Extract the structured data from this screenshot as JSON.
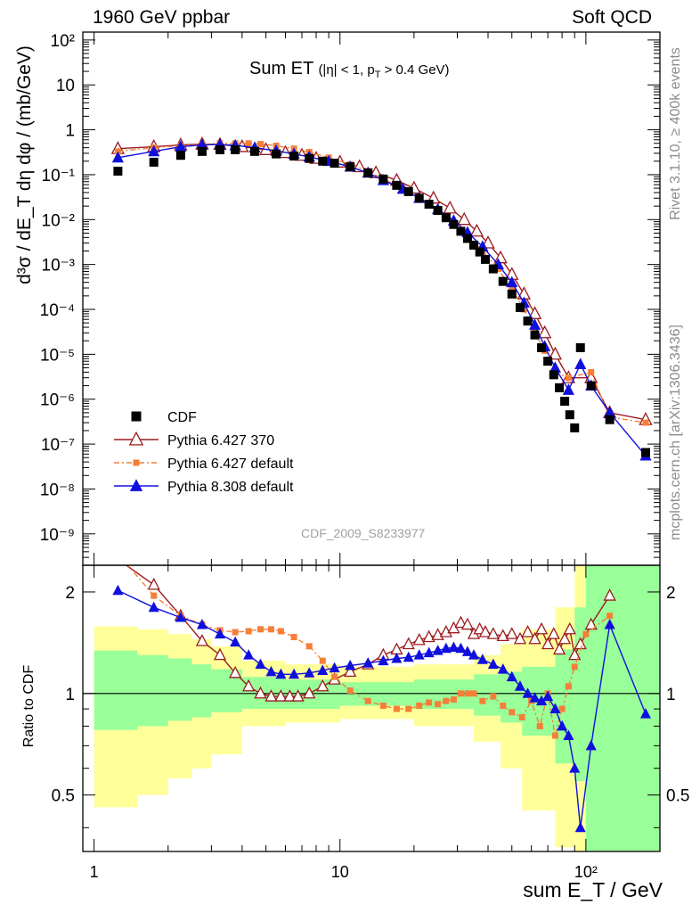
{
  "header": {
    "left": "1960 GeV ppbar",
    "right": "Soft QCD"
  },
  "plot_title": "Sum ET",
  "plot_title_sub": "(|η| < 1, p",
  "plot_title_sub_idx": "T",
  "plot_title_sub_end": " > 0.4 GeV)",
  "analysis_id": "CDF_2009_S8233977",
  "side_labels": {
    "rivet": "Rivet 3.1.10, ≥ 400k events",
    "mcplots": "mcplots.cern.ch [arXiv:1306.3436]"
  },
  "ylabel_main": "d³σ / dE_T dη dφ / (mb/GeV)",
  "ylabel_ratio": "Ratio to CDF",
  "xlabel": "sum E_T / GeV",
  "chart_data": [
    {
      "type": "scatter",
      "panel": "main",
      "x_scale": "log",
      "y_scale": "log",
      "xlim": [
        0.9,
        200
      ],
      "ylim": [
        2e-10,
        150
      ],
      "xticks": [
        {
          "v": 1,
          "label": "1"
        },
        {
          "v": 10,
          "label": "10"
        },
        {
          "v": 100,
          "label": "10²"
        }
      ],
      "yticks": [
        {
          "v": 100,
          "label": "10²"
        },
        {
          "v": 10,
          "label": "10"
        },
        {
          "v": 1,
          "label": "1"
        },
        {
          "v": 0.1,
          "label": "10⁻¹"
        },
        {
          "v": 0.01,
          "label": "10⁻²"
        },
        {
          "v": 0.001,
          "label": "10⁻³"
        },
        {
          "v": 0.0001,
          "label": "10⁻⁴"
        },
        {
          "v": 1e-05,
          "label": "10⁻⁵"
        },
        {
          "v": 1e-06,
          "label": "10⁻⁶"
        },
        {
          "v": 1e-07,
          "label": "10⁻⁷"
        },
        {
          "v": 1e-08,
          "label": "10⁻⁸"
        },
        {
          "v": 1e-09,
          "label": "10⁻⁹"
        }
      ],
      "legend_position": "bottom-left",
      "series": [
        {
          "name": "CDF",
          "color": "#000000",
          "marker": "square",
          "x": [
            1.25,
            1.75,
            2.25,
            2.75,
            3.25,
            3.75,
            4.5,
            5.5,
            6.5,
            7.5,
            8.5,
            9.5,
            11,
            13,
            15,
            17,
            19,
            21,
            23,
            25,
            27,
            29,
            31,
            33,
            35,
            37,
            39,
            42,
            46,
            50,
            54,
            58,
            62,
            66,
            70,
            74,
            78,
            82,
            86,
            90,
            95,
            105,
            125,
            175
          ],
          "y": [
            0.12,
            0.19,
            0.27,
            0.33,
            0.36,
            0.36,
            0.33,
            0.29,
            0.26,
            0.23,
            0.2,
            0.18,
            0.15,
            0.11,
            0.08,
            0.058,
            0.042,
            0.03,
            0.022,
            0.016,
            0.011,
            0.0078,
            0.0055,
            0.0038,
            0.0027,
            0.0019,
            0.0013,
            0.0008,
            0.00042,
            0.00022,
            0.00011,
            5.5e-05,
            2.7e-05,
            1.4e-05,
            7e-06,
            3.5e-06,
            1.8e-06,
            9e-07,
            4.5e-07,
            2.3e-07,
            1.4e-05,
            2e-06,
            3.5e-07,
            6.5e-08
          ]
        },
        {
          "name": "Pythia 6.427 370",
          "color": "#9b1b1e",
          "marker": "open-triangle",
          "x": [
            1.25,
            1.75,
            2.25,
            2.75,
            3.25,
            4,
            5,
            6,
            7,
            8,
            10,
            12,
            14,
            17,
            20,
            24,
            28,
            32,
            36,
            40,
            45,
            50,
            56,
            62,
            68,
            75,
            85,
            105,
            125,
            175
          ],
          "y": [
            0.38,
            0.42,
            0.46,
            0.48,
            0.47,
            0.42,
            0.36,
            0.31,
            0.27,
            0.23,
            0.19,
            0.15,
            0.11,
            0.075,
            0.05,
            0.03,
            0.018,
            0.01,
            0.0055,
            0.003,
            0.0014,
            0.0006,
            0.00022,
            8e-05,
            3e-05,
            1e-05,
            3e-06,
            3e-06,
            5e-07,
            3.5e-07
          ]
        },
        {
          "name": "Pythia 6.427 default",
          "color": "#f57f38",
          "marker": "square",
          "x": [
            1.25,
            1.75,
            2.25,
            2.75,
            3.25,
            3.75,
            4.25,
            4.75,
            5.5,
            6.5,
            7.5,
            9,
            11,
            13,
            15,
            18,
            21,
            25,
            29,
            33,
            38,
            44,
            50,
            56,
            62,
            68,
            75,
            85,
            105,
            125,
            175
          ],
          "y": [
            0.33,
            0.4,
            0.44,
            0.47,
            0.5,
            0.5,
            0.5,
            0.48,
            0.44,
            0.38,
            0.32,
            0.24,
            0.17,
            0.12,
            0.08,
            0.05,
            0.03,
            0.016,
            0.0085,
            0.0045,
            0.002,
            0.0008,
            0.00028,
            0.0001,
            3e-05,
            1.2e-05,
            4e-06,
            3e-06,
            4e-06,
            4e-07,
            3e-07
          ]
        },
        {
          "name": "Pythia 8.308 default",
          "color": "#1010dd",
          "marker": "triangle",
          "x": [
            1.25,
            1.75,
            2.25,
            2.75,
            3.25,
            3.75,
            4.5,
            5.5,
            6.5,
            7.5,
            9,
            11,
            13,
            15,
            18,
            21,
            25,
            29,
            33,
            38,
            44,
            50,
            56,
            62,
            68,
            75,
            85,
            95,
            105,
            125,
            175
          ],
          "y": [
            0.24,
            0.33,
            0.42,
            0.46,
            0.47,
            0.45,
            0.4,
            0.34,
            0.29,
            0.25,
            0.2,
            0.15,
            0.11,
            0.075,
            0.048,
            0.03,
            0.017,
            0.0095,
            0.0052,
            0.0025,
            0.001,
            0.0004,
            0.00014,
            4.5e-05,
            1.5e-05,
            5e-06,
            1.6e-06,
            6e-06,
            2e-06,
            5e-07,
            5.5e-08
          ]
        }
      ]
    },
    {
      "type": "line",
      "panel": "ratio",
      "x_scale": "log",
      "y_scale": "log",
      "xlim": [
        0.9,
        200
      ],
      "ylim": [
        0.34,
        2.4
      ],
      "reference_line": 1,
      "yticks": [
        {
          "v": 2,
          "label": "2"
        },
        {
          "v": 1,
          "label": "1"
        },
        {
          "v": 0.5,
          "label": "0.5"
        }
      ],
      "bands": {
        "outer_color": "#ffff99",
        "inner_color": "#99ff99",
        "bins": [
          {
            "x0": 1.0,
            "x1": 1.5,
            "lo_outer": 0.46,
            "hi_outer": 1.58,
            "lo_inner": 0.78,
            "hi_inner": 1.34
          },
          {
            "x0": 1.5,
            "x1": 2.0,
            "lo_outer": 0.5,
            "hi_outer": 1.55,
            "lo_inner": 0.8,
            "hi_inner": 1.3
          },
          {
            "x0": 2.0,
            "x1": 2.5,
            "lo_outer": 0.56,
            "hi_outer": 1.5,
            "lo_inner": 0.83,
            "hi_inner": 1.27
          },
          {
            "x0": 2.5,
            "x1": 3.0,
            "lo_outer": 0.6,
            "hi_outer": 1.45,
            "lo_inner": 0.85,
            "hi_inner": 1.22
          },
          {
            "x0": 3.0,
            "x1": 4.0,
            "lo_outer": 0.66,
            "hi_outer": 1.38,
            "lo_inner": 0.88,
            "hi_inner": 1.18
          },
          {
            "x0": 4.0,
            "x1": 6.0,
            "lo_outer": 0.8,
            "hi_outer": 1.25,
            "lo_inner": 0.9,
            "hi_inner": 1.12
          },
          {
            "x0": 6.0,
            "x1": 10.0,
            "lo_outer": 0.82,
            "hi_outer": 1.22,
            "lo_inner": 0.9,
            "hi_inner": 1.1
          },
          {
            "x0": 10.0,
            "x1": 20.0,
            "lo_outer": 0.84,
            "hi_outer": 1.2,
            "lo_inner": 0.92,
            "hi_inner": 1.08
          },
          {
            "x0": 20.0,
            "x1": 35.0,
            "lo_outer": 0.8,
            "hi_outer": 1.22,
            "lo_inner": 0.9,
            "hi_inner": 1.1
          },
          {
            "x0": 35.0,
            "x1": 45.0,
            "lo_outer": 0.72,
            "hi_outer": 1.3,
            "lo_inner": 0.86,
            "hi_inner": 1.14
          },
          {
            "x0": 45.0,
            "x1": 55.0,
            "lo_outer": 0.6,
            "hi_outer": 1.4,
            "lo_inner": 0.82,
            "hi_inner": 1.16
          },
          {
            "x0": 55.0,
            "x1": 75.0,
            "lo_outer": 0.45,
            "hi_outer": 1.55,
            "lo_inner": 0.75,
            "hi_inner": 1.2
          },
          {
            "x0": 75.0,
            "x1": 90.0,
            "lo_outer": 0.35,
            "hi_outer": 1.8,
            "lo_inner": 0.62,
            "hi_inner": 1.35
          },
          {
            "x0": 90.0,
            "x1": 100.0,
            "lo_outer": 0.34,
            "hi_outer": 2.4,
            "lo_inner": 0.55,
            "hi_inner": 1.8
          },
          {
            "x0": 100.0,
            "x1": 150.0,
            "lo_outer": 0.34,
            "hi_outer": 2.4,
            "lo_inner": 0.34,
            "hi_inner": 2.4
          },
          {
            "x0": 150.0,
            "x1": 200.0,
            "lo_outer": 0.34,
            "hi_outer": 2.4,
            "lo_inner": 0.34,
            "hi_inner": 2.4
          }
        ]
      },
      "series": [
        {
          "name": "Pythia 6.427 370",
          "color": "#9b1b1e",
          "marker": "open-triangle",
          "x": [
            1.25,
            1.75,
            2.25,
            2.75,
            3.25,
            3.75,
            4.25,
            4.75,
            5.25,
            5.75,
            6.25,
            6.75,
            7.5,
            8.5,
            9.5,
            11,
            13,
            15,
            17,
            19,
            21,
            23,
            25,
            27,
            29,
            31,
            33,
            35,
            37,
            39,
            42,
            46,
            50,
            54,
            58,
            62,
            66,
            70,
            74,
            78,
            82,
            86,
            90,
            95,
            105,
            125
          ],
          "y": [
            2.5,
            2.1,
            1.7,
            1.43,
            1.3,
            1.15,
            1.05,
            1.0,
            0.98,
            0.98,
            0.98,
            0.98,
            1.0,
            1.05,
            1.1,
            1.16,
            1.22,
            1.3,
            1.35,
            1.4,
            1.44,
            1.47,
            1.49,
            1.52,
            1.56,
            1.62,
            1.6,
            1.5,
            1.55,
            1.52,
            1.5,
            1.48,
            1.5,
            1.45,
            1.52,
            1.45,
            1.55,
            1.4,
            1.5,
            1.35,
            1.45,
            1.55,
            1.3,
            1.4,
            1.6,
            1.95
          ]
        },
        {
          "name": "Pythia 6.427 default",
          "color": "#f57f38",
          "marker": "square",
          "x": [
            1.25,
            1.75,
            2.25,
            2.75,
            3.25,
            3.75,
            4.25,
            4.75,
            5.25,
            5.75,
            6.5,
            7.5,
            8.5,
            9.5,
            11,
            13,
            15,
            17,
            19,
            21,
            23,
            25,
            27,
            29,
            31,
            33,
            35,
            38,
            42,
            46,
            50,
            55,
            60,
            65,
            70,
            75,
            80,
            85,
            90,
            100,
            125
          ],
          "y": [
            2.6,
            1.95,
            1.7,
            1.6,
            1.54,
            1.52,
            1.53,
            1.55,
            1.55,
            1.53,
            1.47,
            1.38,
            1.25,
            1.12,
            1.02,
            0.95,
            0.92,
            0.9,
            0.9,
            0.92,
            0.94,
            0.93,
            0.95,
            0.96,
            1.0,
            1.0,
            1.0,
            0.95,
            0.98,
            0.92,
            0.88,
            0.85,
            0.95,
            0.8,
            1.0,
            0.75,
            0.9,
            1.05,
            1.2,
            1.5,
            1.7
          ]
        },
        {
          "name": "Pythia 8.308 default",
          "color": "#1010dd",
          "marker": "triangle",
          "x": [
            1.25,
            1.75,
            2.25,
            2.75,
            3.25,
            3.75,
            4.25,
            4.75,
            5.25,
            5.75,
            6.5,
            7.5,
            8.5,
            9.5,
            11,
            13,
            15,
            17,
            19,
            21,
            23,
            25,
            27,
            29,
            31,
            33,
            35,
            38,
            42,
            46,
            50,
            54,
            58,
            62,
            66,
            70,
            75,
            80,
            85,
            90,
            95,
            105,
            125,
            175
          ],
          "y": [
            2.02,
            1.8,
            1.68,
            1.6,
            1.5,
            1.42,
            1.3,
            1.22,
            1.16,
            1.14,
            1.14,
            1.15,
            1.17,
            1.19,
            1.21,
            1.23,
            1.25,
            1.27,
            1.28,
            1.3,
            1.32,
            1.34,
            1.36,
            1.37,
            1.36,
            1.33,
            1.3,
            1.26,
            1.22,
            1.18,
            1.12,
            1.05,
            1.0,
            0.97,
            0.95,
            0.98,
            0.9,
            0.8,
            0.75,
            0.6,
            0.4,
            0.7,
            1.6,
            0.87
          ]
        }
      ]
    }
  ]
}
